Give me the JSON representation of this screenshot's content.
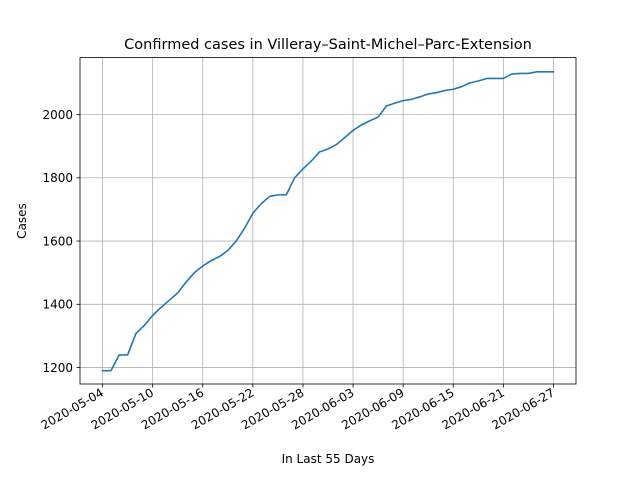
{
  "chart_data": {
    "type": "line",
    "title": "Confirmed cases in Villeray–Saint-Michel–Parc-Extension",
    "xlabel": "In Last 55 Days",
    "ylabel": "Cases",
    "grid": true,
    "line_color": "#1f77b4",
    "xlim": [
      "2020-05-04",
      "2020-06-27"
    ],
    "ylim": [
      1148,
      2180
    ],
    "x_ticks": [
      "2020-05-04",
      "2020-05-10",
      "2020-05-16",
      "2020-05-22",
      "2020-05-28",
      "2020-06-03",
      "2020-06-09",
      "2020-06-15",
      "2020-06-21",
      "2020-06-27"
    ],
    "y_ticks": [
      1200,
      1400,
      1600,
      1800,
      2000
    ],
    "series": [
      {
        "x": [
          "2020-05-04",
          "2020-05-05",
          "2020-05-06",
          "2020-05-07",
          "2020-05-08",
          "2020-05-09",
          "2020-05-10",
          "2020-05-11",
          "2020-05-12",
          "2020-05-13",
          "2020-05-14",
          "2020-05-15",
          "2020-05-16",
          "2020-05-17",
          "2020-05-18",
          "2020-05-19",
          "2020-05-20",
          "2020-05-21",
          "2020-05-22",
          "2020-05-23",
          "2020-05-24",
          "2020-05-25",
          "2020-05-26",
          "2020-05-27",
          "2020-05-28",
          "2020-05-29",
          "2020-05-30",
          "2020-05-31",
          "2020-06-01",
          "2020-06-02",
          "2020-06-03",
          "2020-06-04",
          "2020-06-05",
          "2020-06-06",
          "2020-06-07",
          "2020-06-08",
          "2020-06-09",
          "2020-06-10",
          "2020-06-11",
          "2020-06-12",
          "2020-06-13",
          "2020-06-14",
          "2020-06-15",
          "2020-06-16",
          "2020-06-17",
          "2020-06-18",
          "2020-06-19",
          "2020-06-20",
          "2020-06-21",
          "2020-06-22",
          "2020-06-23",
          "2020-06-24",
          "2020-06-25",
          "2020-06-26",
          "2020-06-27"
        ],
        "y": [
          1190,
          1190,
          1240,
          1240,
          1308,
          1333,
          1365,
          1390,
          1413,
          1436,
          1470,
          1500,
          1521,
          1538,
          1551,
          1570,
          1600,
          1640,
          1688,
          1718,
          1741,
          1746,
          1746,
          1800,
          1828,
          1853,
          1882,
          1891,
          1905,
          1927,
          1950,
          1967,
          1980,
          1992,
          2027,
          2036,
          2044,
          2048,
          2056,
          2065,
          2069,
          2076,
          2080,
          2088,
          2100,
          2106,
          2114,
          2114,
          2114,
          2128,
          2130,
          2130,
          2135,
          2135,
          2135
        ]
      }
    ]
  }
}
